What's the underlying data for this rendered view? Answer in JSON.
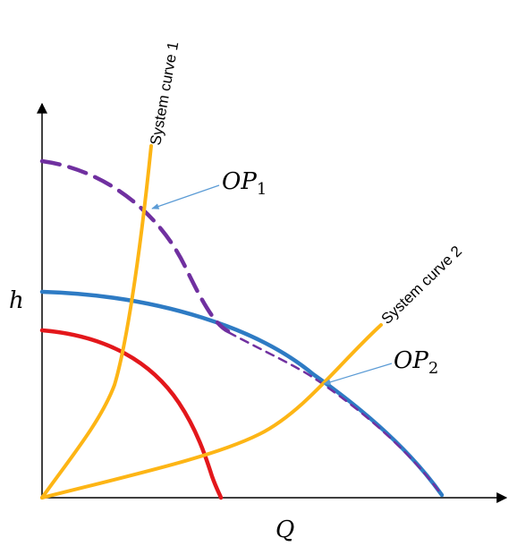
{
  "axes": {
    "x_label": "Q",
    "y_label": "h"
  },
  "labels": {
    "system_curve_1": "System curve 1",
    "system_curve_2": "System curve 2",
    "op1_main": "OP",
    "op1_sub": "1",
    "op2_main": "OP",
    "op2_sub": "2"
  },
  "colors": {
    "system_curves": "#fdb515",
    "dashed_curve": "#7030a0",
    "blue_curve": "#2e7bc4",
    "red_curve": "#e3171b",
    "pointer": "#5b9bd5",
    "axis": "#000000"
  }
}
